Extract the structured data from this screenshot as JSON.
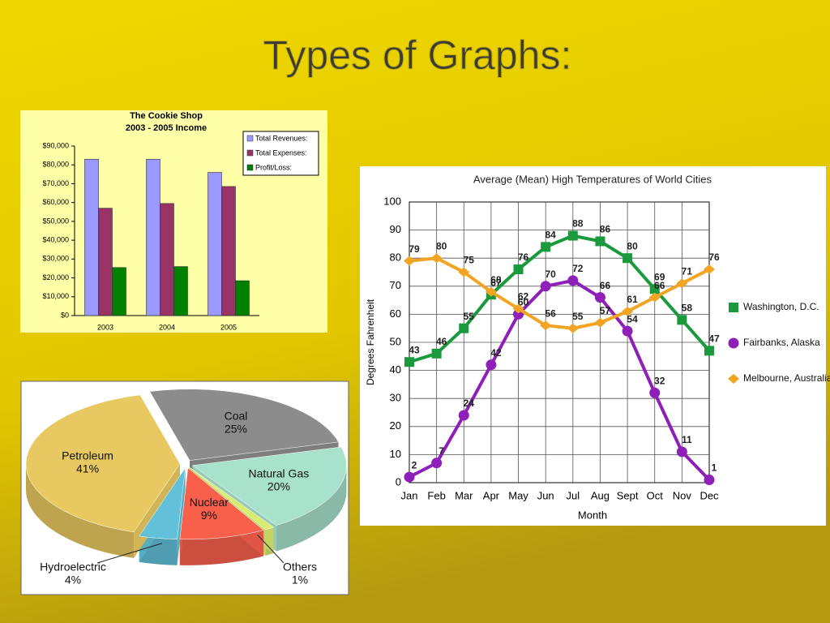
{
  "title": "Types of Graphs:",
  "chart_data": [
    {
      "type": "bar",
      "title": "The Cookie Shop",
      "subtitle": "2003 - 2005 Income",
      "categories": [
        "2003",
        "2004",
        "2005"
      ],
      "series": [
        {
          "name": "Total Revenues:",
          "color": "#9999ff",
          "values": [
            83000,
            83000,
            76000
          ]
        },
        {
          "name": "Total Expenses:",
          "color": "#993366",
          "values": [
            57000,
            59500,
            68500
          ]
        },
        {
          "name": "Profit/Loss:",
          "color": "#008000",
          "values": [
            25500,
            26000,
            18500
          ]
        }
      ],
      "ylim": [
        0,
        90000
      ],
      "yticks": [
        {
          "value": 0,
          "label": "$0"
        },
        {
          "value": 10000,
          "label": "$10,000"
        },
        {
          "value": 20000,
          "label": "$20,000"
        },
        {
          "value": 30000,
          "label": "$30,000"
        },
        {
          "value": 40000,
          "label": "$40,000"
        },
        {
          "value": 50000,
          "label": "$50,000"
        },
        {
          "value": 60000,
          "label": "$60,000"
        },
        {
          "value": 70000,
          "label": "$70,000"
        },
        {
          "value": 80000,
          "label": "$80,000"
        },
        {
          "value": 90000,
          "label": "$90,000"
        }
      ],
      "legend": "top-right",
      "grid": false
    },
    {
      "type": "pie",
      "categories": [
        "Coal",
        "Natural Gas",
        "Others",
        "Nuclear",
        "Hydroelectric",
        "Petroleum"
      ],
      "values": [
        25,
        20,
        1,
        9,
        4,
        41
      ],
      "value_labels": [
        "25%",
        "20%",
        "1%",
        "9%",
        "4%",
        "41%"
      ],
      "colors": [
        "#8c8c8c",
        "#a8e2cc",
        "#d8ec70",
        "#f8604c",
        "#62c0d8",
        "#e8c860"
      ]
    },
    {
      "type": "line",
      "title": "Average (Mean) High Temperatures of World Cities",
      "xlabel": "Month",
      "ylabel": "Degrees Fahrenheit",
      "categories": [
        "Jan",
        "Feb",
        "Mar",
        "Apr",
        "May",
        "Jun",
        "Jul",
        "Aug",
        "Sept",
        "Oct",
        "Nov",
        "Dec"
      ],
      "series": [
        {
          "name": "Washington, D.C.",
          "color": "#1a9a3c",
          "marker": "square",
          "values": [
            43,
            46,
            55,
            67,
            76,
            84,
            88,
            86,
            80,
            69,
            58,
            47
          ]
        },
        {
          "name": "Fairbanks, Alaska",
          "color": "#8e1fb8",
          "marker": "circle",
          "values": [
            2,
            7,
            24,
            42,
            60,
            70,
            72,
            66,
            54,
            32,
            11,
            1
          ]
        },
        {
          "name": "Melbourne, Australia",
          "color": "#f2a424",
          "marker": "diamond",
          "values": [
            79,
            80,
            75,
            68,
            62,
            56,
            55,
            57,
            61,
            66,
            71,
            76
          ]
        }
      ],
      "ylim": [
        0,
        100
      ],
      "yticks": [
        0,
        10,
        20,
        30,
        40,
        50,
        60,
        70,
        80,
        90,
        100
      ],
      "grid": true,
      "legend": "right"
    }
  ]
}
